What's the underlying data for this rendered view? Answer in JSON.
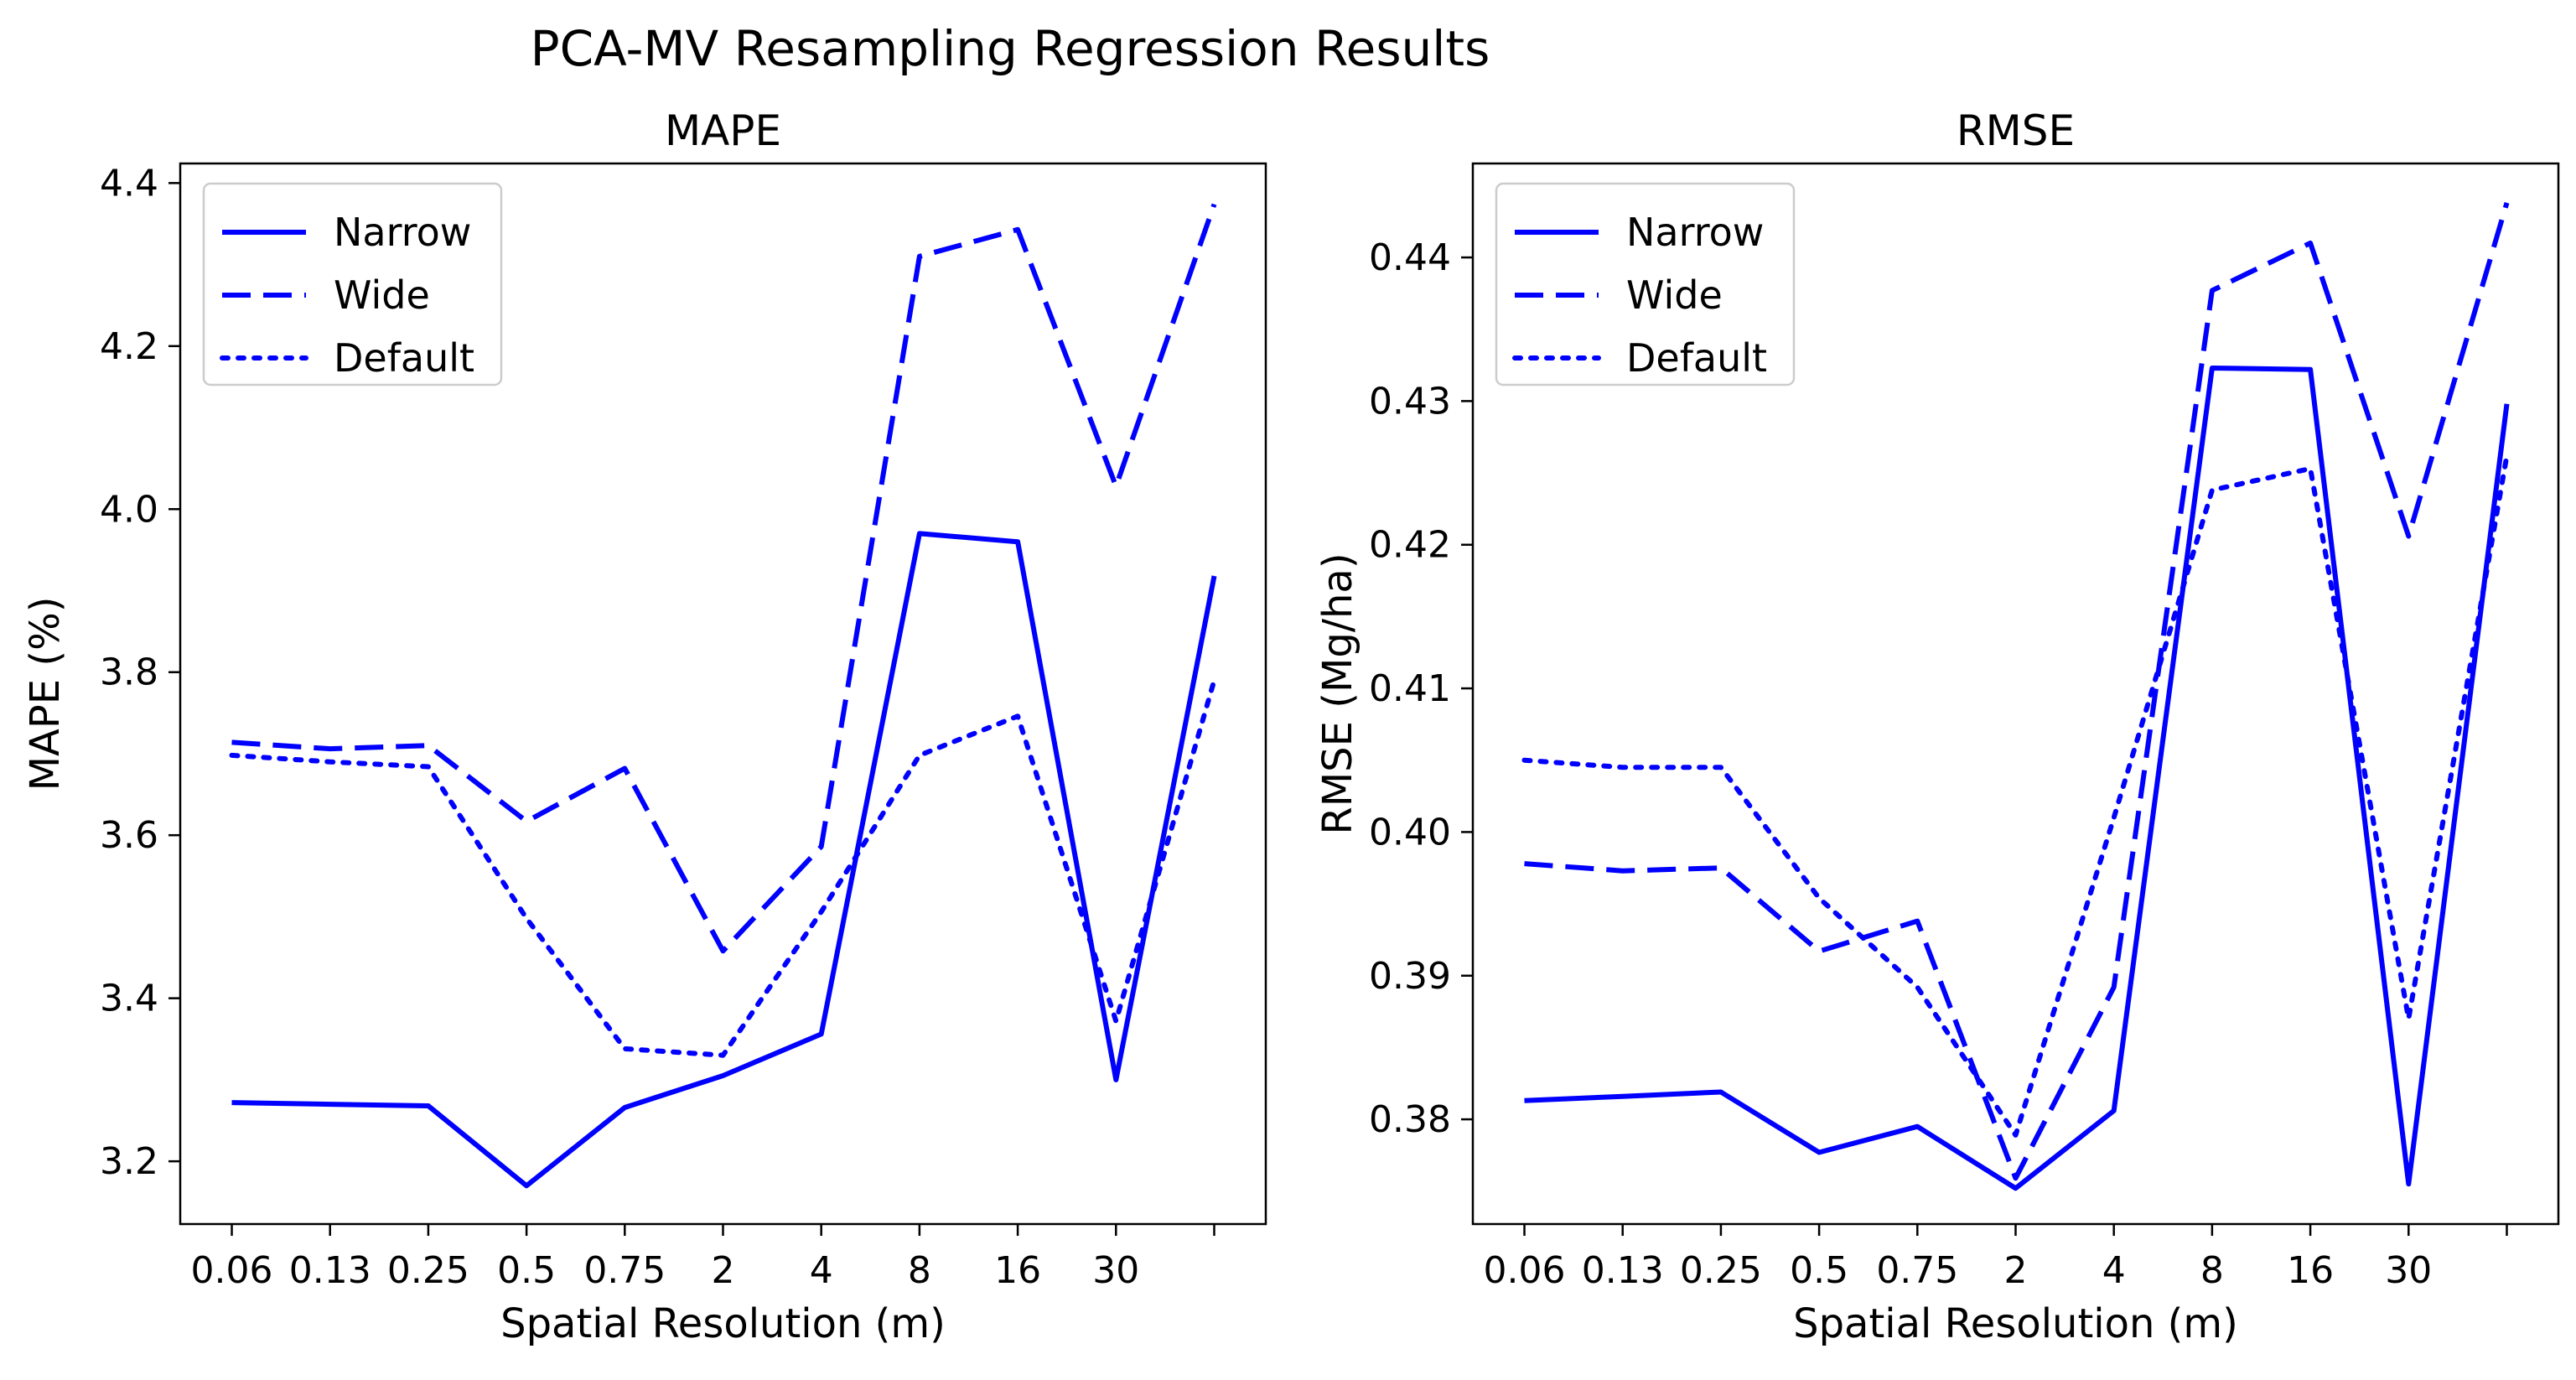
{
  "suptitle": "PCA-MV Resampling Regression Results",
  "colors": {
    "series": "#0000ff",
    "axes": "#000000",
    "legend_border": "#cccccc"
  },
  "chart_data": [
    {
      "type": "line",
      "title": "MAPE",
      "xlabel": "Spatial Resolution (m)",
      "ylabel": "MAPE (%)",
      "categories": [
        "0.06",
        "0.13",
        "0.25",
        "0.5",
        "0.75",
        "2",
        "4",
        "8",
        "16",
        "30",
        ""
      ],
      "xlim": [
        -0.525,
        10.525
      ],
      "ylim": [
        3.123,
        4.424
      ],
      "yticks": [
        3.2,
        3.4,
        3.6,
        3.8,
        4.0,
        4.2,
        4.4
      ],
      "ytick_labels": [
        "3.2",
        "3.4",
        "3.6",
        "3.8",
        "4.0",
        "4.2",
        "4.4"
      ],
      "legend_position": "upper-left",
      "series": [
        {
          "name": "Narrow",
          "style": "solid",
          "values": [
            3.272,
            3.27,
            3.268,
            3.17,
            3.266,
            3.305,
            3.356,
            3.97,
            3.96,
            3.3,
            3.918
          ]
        },
        {
          "name": "Wide",
          "style": "dashed",
          "values": [
            3.714,
            3.706,
            3.71,
            3.617,
            3.682,
            3.458,
            3.586,
            4.31,
            4.343,
            4.028,
            4.374
          ]
        },
        {
          "name": "Default",
          "style": "dotted",
          "values": [
            3.698,
            3.69,
            3.684,
            3.498,
            3.338,
            3.33,
            3.506,
            3.698,
            3.746,
            3.372,
            3.79
          ]
        }
      ]
    },
    {
      "type": "line",
      "title": "RMSE",
      "xlabel": "Spatial Resolution (m)",
      "ylabel": "RMSE (Mg/ha)",
      "categories": [
        "0.06",
        "0.13",
        "0.25",
        "0.5",
        "0.75",
        "2",
        "4",
        "8",
        "16",
        "30",
        ""
      ],
      "xlim": [
        -0.525,
        10.525
      ],
      "ylim": [
        0.37271,
        0.44654
      ],
      "yticks": [
        0.38,
        0.39,
        0.4,
        0.41,
        0.42,
        0.43,
        0.44
      ],
      "ytick_labels": [
        "0.38",
        "0.39",
        "0.40",
        "0.41",
        "0.42",
        "0.43",
        "0.44"
      ],
      "legend_position": "upper-left",
      "series": [
        {
          "name": "Narrow",
          "style": "solid",
          "values": [
            0.3813,
            0.3816,
            0.3819,
            0.3777,
            0.3795,
            0.3752,
            0.3806,
            0.4323,
            0.4322,
            0.3755,
            0.4298
          ]
        },
        {
          "name": "Wide",
          "style": "dashed",
          "values": [
            0.3978,
            0.3973,
            0.3975,
            0.3917,
            0.3938,
            0.3759,
            0.3892,
            0.4377,
            0.441,
            0.4206,
            0.4438
          ]
        },
        {
          "name": "Default",
          "style": "dotted",
          "values": [
            0.405,
            0.4045,
            0.4045,
            0.3954,
            0.3892,
            0.3789,
            0.401,
            0.4238,
            0.4253,
            0.387,
            0.4262
          ]
        }
      ]
    }
  ]
}
